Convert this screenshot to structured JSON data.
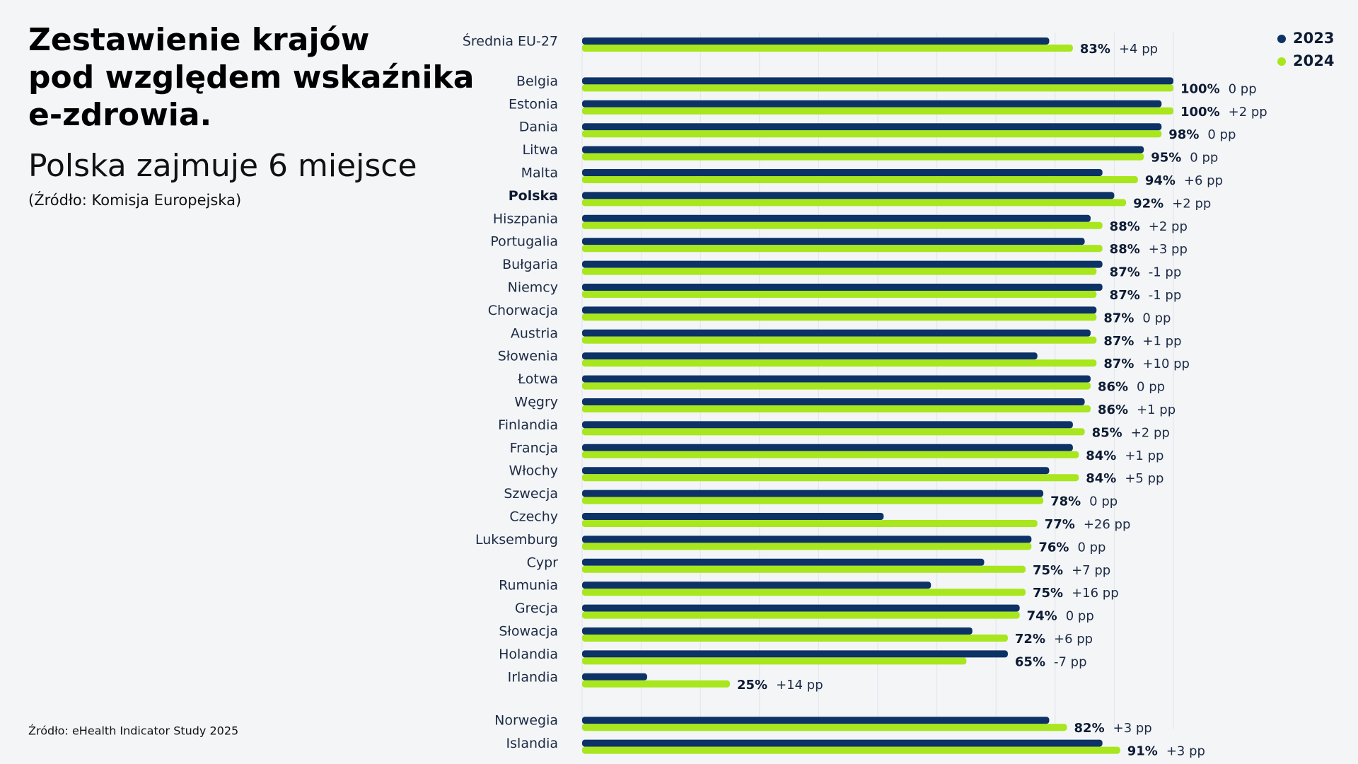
{
  "chart_data": {
    "type": "bar",
    "orientation": "horizontal",
    "title_lines": [
      "Zestawienie krajów",
      "pod względem wskaźnika",
      "e-zdrowia."
    ],
    "subtitle": "Polska zajmuje 6 miejsce",
    "note": "(Źródło: Komisja Europejska)",
    "source": "Źródło: eHealth Indicator Study 2025",
    "highlight": "Polska",
    "categories": [
      "Średnia EU-27",
      "Belgia",
      "Estonia",
      "Dania",
      "Litwa",
      "Malta",
      "Polska",
      "Hiszpania",
      "Portugalia",
      "Bułgaria",
      "Niemcy",
      "Chorwacja",
      "Austria",
      "Słowenia",
      "Łotwa",
      "Węgry",
      "Finlandia",
      "Francja",
      "Włochy",
      "Szwecja",
      "Czechy",
      "Luksemburg",
      "Cypr",
      "Rumunia",
      "Grecja",
      "Słowacja",
      "Holandia",
      "Irlandia",
      "Norwegia",
      "Islandia"
    ],
    "series": [
      {
        "name": "2023",
        "color": "#0d3266",
        "values": [
          79,
          100,
          98,
          98,
          95,
          88,
          90,
          86,
          85,
          88,
          88,
          87,
          86,
          77,
          86,
          85,
          83,
          83,
          79,
          78,
          51,
          76,
          68,
          59,
          74,
          66,
          72,
          11,
          79,
          88
        ]
      },
      {
        "name": "2024",
        "color": "#a8e61d",
        "values": [
          83,
          100,
          100,
          98,
          95,
          94,
          92,
          88,
          88,
          87,
          87,
          87,
          87,
          87,
          86,
          86,
          85,
          84,
          84,
          78,
          77,
          76,
          75,
          75,
          74,
          72,
          65,
          25,
          82,
          91
        ],
        "value_labels": [
          "83%",
          "100%",
          "100%",
          "98%",
          "95%",
          "94%",
          "92%",
          "88%",
          "88%",
          "87%",
          "87%",
          "87%",
          "87%",
          "87%",
          "86%",
          "86%",
          "85%",
          "84%",
          "84%",
          "78%",
          "77%",
          "76%",
          "75%",
          "75%",
          "74%",
          "72%",
          "65%",
          "25%",
          "82%",
          "91%"
        ]
      }
    ],
    "change_labels": [
      "+4 pp",
      "0 pp",
      "+2 pp",
      "0 pp",
      "0 pp",
      "+6 pp",
      "+2 pp",
      "+2 pp",
      "+3 pp",
      "-1 pp",
      "-1 pp",
      "0 pp",
      "+1 pp",
      "+10 pp",
      "0 pp",
      "+1 pp",
      "+2 pp",
      "+1 pp",
      "+5 pp",
      "0 pp",
      "+26 pp",
      "0 pp",
      "+7 pp",
      "+16 pp",
      "0 pp",
      "+6 pp",
      "-7 pp",
      "+14 pp",
      "+3 pp",
      "+3 pp"
    ],
    "xlim": [
      0,
      100
    ],
    "xticks": [
      0,
      10,
      20,
      30,
      40,
      50,
      60,
      70,
      80,
      90,
      100
    ],
    "grid": true,
    "legend": "top-right"
  }
}
